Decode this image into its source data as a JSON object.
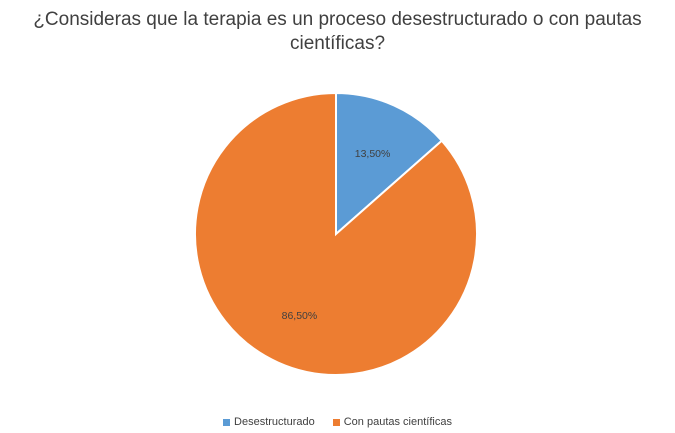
{
  "chart_data": {
    "type": "pie",
    "title": "¿Consideras que la terapia es un proceso desestructurado o con pautas científicas?",
    "title_lines": [
      "¿Consideras que la terapia es un proceso desestructurado o con pautas",
      "científicas?"
    ],
    "categories": [
      "Desestructurado",
      "Con pautas científicas"
    ],
    "values": [
      13.5,
      86.5
    ],
    "data_labels": [
      "13,50%",
      "86,50%"
    ],
    "colors": [
      "#5B9BD5",
      "#ED7D31"
    ],
    "legend_position": "bottom"
  }
}
